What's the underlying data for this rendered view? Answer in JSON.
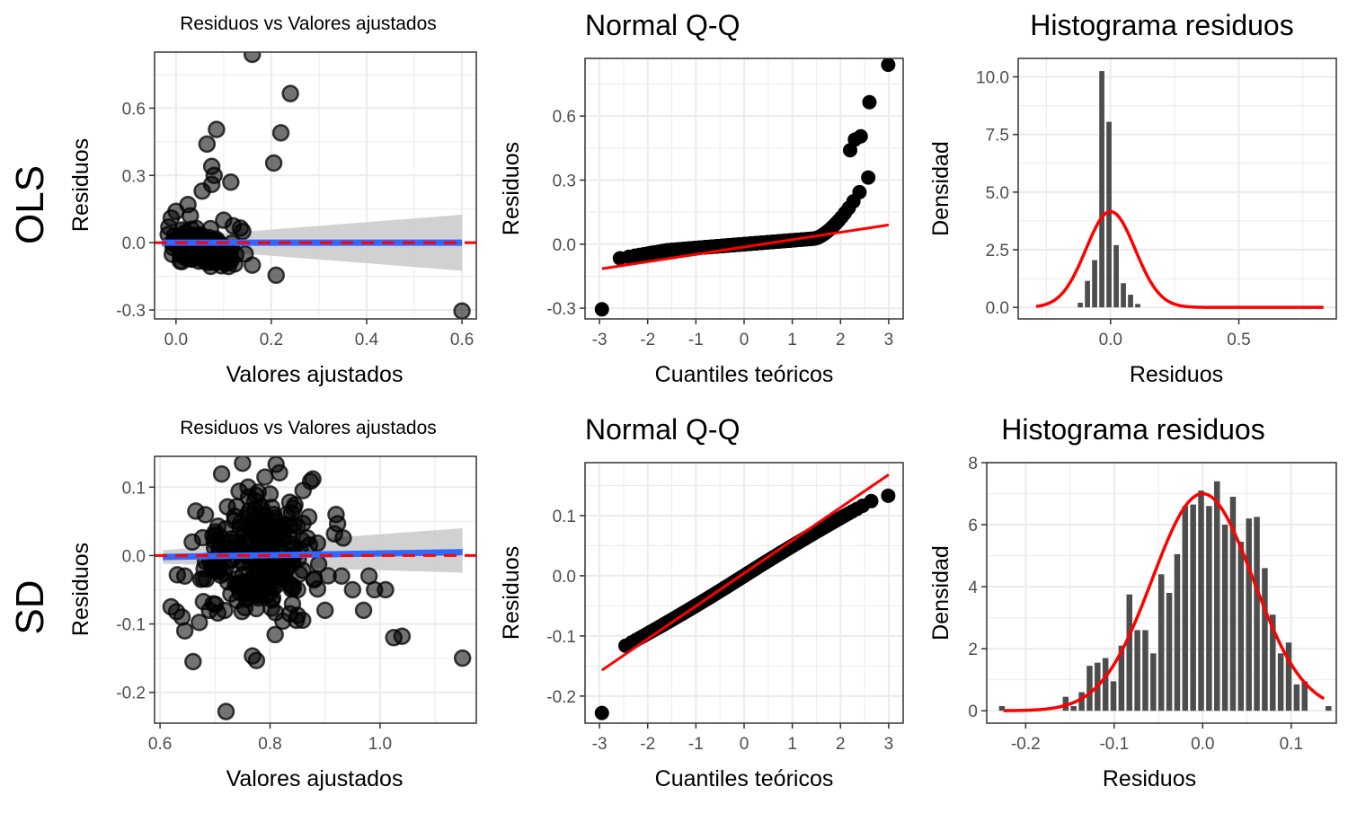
{
  "rows": [
    {
      "id": "ols",
      "label": "OLS"
    },
    {
      "id": "sd",
      "label": "SD"
    }
  ],
  "colors": {
    "points": "#000000",
    "fit_line": "#3366FF",
    "ref_line": "#FF0000",
    "band": "#cccccc",
    "bars": "#4d4d4d",
    "panel_border": "#333333",
    "grid": "#ebebeb"
  },
  "chart_data": [
    {
      "id": "ols-resid",
      "type": "scatter",
      "title": "Residuos vs Valores ajustados",
      "title_size": "small",
      "xlabel": "Valores ajustados",
      "ylabel": "Residuos",
      "xlim": [
        -0.045,
        0.63
      ],
      "ylim": [
        -0.34,
        0.85
      ],
      "xticks": [
        0.0,
        0.2,
        0.4,
        0.6
      ],
      "xtick_labels": [
        "0.0",
        "0.2",
        "0.4",
        "0.6"
      ],
      "yticks": [
        -0.3,
        0.0,
        0.3,
        0.6
      ],
      "ytick_labels": [
        "-0.3",
        "0.0",
        "0.3",
        "0.6"
      ],
      "smooth": {
        "x": [
          -0.03,
          0.6
        ],
        "y": [
          0.0,
          0.0
        ],
        "band_lo": [
          -0.02,
          -0.125
        ],
        "band_hi": [
          0.02,
          0.125
        ]
      },
      "hline": 0.0,
      "points": {
        "n_cluster": 230,
        "cluster": {
          "x_center": 0.04,
          "x_sd": 0.035,
          "y_center": 0.0,
          "y_sd": 0.035
        },
        "x": [
          0.16,
          0.24,
          0.085,
          0.22,
          0.065,
          0.205,
          0.075,
          0.08,
          0.075,
          0.115,
          0.055,
          0.025,
          0.12,
          0.135,
          0.1,
          0.14,
          0.145,
          0.115,
          0.16,
          0.21,
          0.6,
          0.0,
          -0.01,
          -0.015,
          0.03
        ],
        "y": [
          0.84,
          0.665,
          0.505,
          0.49,
          0.44,
          0.355,
          0.34,
          0.3,
          0.26,
          0.27,
          0.23,
          0.17,
          0.075,
          0.065,
          0.1,
          0.05,
          -0.05,
          -0.08,
          -0.1,
          -0.145,
          -0.305,
          0.14,
          0.11,
          0.07,
          0.12
        ]
      }
    },
    {
      "id": "ols-qq",
      "type": "scatter",
      "title": "Normal Q-Q",
      "title_size": "big",
      "xlabel": "Cuantiles teóricos",
      "ylabel": "Residuos",
      "xlim": [
        -3.3,
        3.3
      ],
      "ylim": [
        -0.35,
        0.87
      ],
      "xticks": [
        -3,
        -2,
        -1,
        0,
        1,
        2,
        3
      ],
      "xtick_labels": [
        "-3",
        "-2",
        "-1",
        "0",
        "1",
        "2",
        "3"
      ],
      "yticks": [
        -0.3,
        0.0,
        0.3,
        0.6
      ],
      "ytick_labels": [
        "-0.3",
        "0.0",
        "0.3",
        "0.6"
      ],
      "ref_line": {
        "x": [
          -2.95,
          3.0
        ],
        "y": [
          -0.115,
          0.09
        ]
      },
      "points": {
        "n_qq": 300,
        "qq_model": "ols",
        "x": [
          -2.95,
          2.99,
          2.6,
          2.42,
          2.3,
          2.2
        ],
        "y": [
          -0.305,
          0.84,
          0.665,
          0.505,
          0.49,
          0.44
        ]
      }
    },
    {
      "id": "ols-hist",
      "type": "bar",
      "title": "Histograma residuos",
      "title_size": "big",
      "xlabel": "Residuos",
      "ylabel": "Densidad",
      "xlim": [
        -0.36,
        0.88
      ],
      "ylim": [
        -0.5,
        10.8
      ],
      "xticks": [
        0.0,
        0.5
      ],
      "xtick_labels": [
        "0.0",
        "0.5"
      ],
      "yticks": [
        0.0,
        2.5,
        5.0,
        7.5,
        10.0
      ],
      "ytick_labels": [
        "0.0",
        "2.5",
        "5.0",
        "7.5",
        "10.0"
      ],
      "bin_width": 0.028,
      "bar_width": 0.02,
      "bin_centers": [
        -0.118,
        -0.09,
        -0.062,
        -0.034,
        -0.006,
        0.022,
        0.05,
        0.078,
        0.106
      ],
      "bar_values": [
        0.2,
        1.15,
        2.05,
        10.25,
        8.05,
        2.7,
        1.05,
        0.55,
        0.15
      ],
      "density_curve": {
        "mean": 0.0,
        "sd": 0.096,
        "x_from": -0.29,
        "x_to": 0.83
      }
    },
    {
      "id": "sd-resid",
      "type": "scatter",
      "title": "Residuos vs Valores ajustados",
      "title_size": "small",
      "xlabel": "Valores ajustados",
      "ylabel": "Residuos",
      "xlim": [
        0.59,
        1.175
      ],
      "ylim": [
        -0.245,
        0.145
      ],
      "xticks": [
        0.6,
        0.8,
        1.0
      ],
      "xtick_labels": [
        "0.6",
        "0.8",
        "1.0"
      ],
      "yticks": [
        -0.2,
        -0.1,
        0.0,
        0.1
      ],
      "ytick_labels": [
        "-0.2",
        "-0.1",
        "0.0",
        "0.1"
      ],
      "smooth": {
        "x": [
          0.605,
          1.15
        ],
        "y": [
          -0.002,
          0.005
        ],
        "band_lo": [
          -0.01,
          -0.03
        ],
        "band_hi": [
          0.01,
          0.035
        ]
      },
      "hline": 0.0,
      "points": {
        "n_cluster": 260,
        "cluster": {
          "x_center": 0.78,
          "x_sd": 0.055,
          "y_center": 0.0,
          "y_sd": 0.052
        },
        "x": [
          0.62,
          0.63,
          0.64,
          0.645,
          0.66,
          0.665,
          0.72,
          0.73,
          0.75,
          0.83,
          0.85,
          0.9,
          0.93,
          0.95,
          0.97,
          0.99,
          1.01,
          1.025,
          1.04,
          1.15,
          0.76,
          0.8,
          0.86,
          0.69,
          0.92,
          0.98
        ],
        "y": [
          -0.075,
          -0.082,
          -0.09,
          -0.11,
          -0.155,
          0.065,
          -0.228,
          0.02,
          0.135,
          0.06,
          -0.05,
          -0.08,
          -0.03,
          -0.05,
          -0.08,
          -0.05,
          -0.05,
          -0.12,
          -0.118,
          -0.15,
          0.1,
          0.09,
          0.095,
          -0.08,
          0.06,
          -0.03
        ]
      }
    },
    {
      "id": "sd-qq",
      "type": "scatter",
      "title": "Normal Q-Q",
      "title_size": "big",
      "xlabel": "Cuantiles teóricos",
      "ylabel": "Residuos",
      "xlim": [
        -3.3,
        3.3
      ],
      "ylim": [
        -0.245,
        0.188
      ],
      "xticks": [
        -3,
        -2,
        -1,
        0,
        1,
        2,
        3
      ],
      "xtick_labels": [
        "-3",
        "-2",
        "-1",
        "0",
        "1",
        "2",
        "3"
      ],
      "yticks": [
        -0.2,
        -0.1,
        0.0,
        0.1
      ],
      "ytick_labels": [
        "-0.2",
        "-0.1",
        "0.0",
        "0.1"
      ],
      "ref_line": {
        "x": [
          -2.95,
          3.0
        ],
        "y": [
          -0.157,
          0.168
        ]
      },
      "points": {
        "n_qq": 360,
        "qq_model": "sd",
        "x": [
          -2.95,
          2.99
        ],
        "y": [
          -0.228,
          0.133
        ]
      }
    },
    {
      "id": "sd-hist",
      "type": "bar",
      "title": "Histograma residuos",
      "title_size": "big",
      "xlabel": "Residuos",
      "ylabel": "Densidad",
      "xlim": [
        -0.244,
        0.151
      ],
      "ylim": [
        -0.4,
        8.0
      ],
      "xticks": [
        -0.2,
        -0.1,
        0.0,
        0.1
      ],
      "xtick_labels": [
        "-0.2",
        "-0.1",
        "0.0",
        "0.1"
      ],
      "yticks": [
        0,
        2,
        4,
        6,
        8
      ],
      "ytick_labels": [
        "0",
        "2",
        "4",
        "6",
        "8"
      ],
      "bin_width": 0.009,
      "bar_width": 0.0066,
      "bin_centers": [
        -0.2268,
        -0.2178,
        -0.2088,
        -0.1998,
        -0.1908,
        -0.1818,
        -0.1728,
        -0.1638,
        -0.1548,
        -0.1458,
        -0.1368,
        -0.1278,
        -0.1188,
        -0.1098,
        -0.1008,
        -0.0918,
        -0.0828,
        -0.0738,
        -0.0648,
        -0.0558,
        -0.0468,
        -0.0378,
        -0.0288,
        -0.0198,
        -0.0108,
        -0.0018,
        0.0072,
        0.0162,
        0.0252,
        0.0342,
        0.0432,
        0.0522,
        0.0612,
        0.0702,
        0.0792,
        0.0882,
        0.0972,
        0.1062,
        0.1152,
        0.1242,
        0.1332,
        0.1422
      ],
      "bar_values": [
        0.15,
        0,
        0,
        0,
        0,
        0,
        0,
        0,
        0.45,
        0.15,
        0.6,
        1.45,
        1.55,
        1.7,
        0.95,
        2.1,
        3.75,
        2.6,
        2.6,
        1.85,
        4.4,
        3.8,
        5.05,
        6.6,
        6.65,
        7.1,
        6.6,
        7.4,
        6.0,
        6.9,
        5.45,
        6.2,
        6.25,
        4.6,
        3.1,
        1.85,
        2.2,
        0.85,
        0.95,
        0,
        0,
        0.15
      ],
      "density_curve": {
        "mean": 0.0,
        "sd": 0.057,
        "x_from": -0.225,
        "x_to": 0.137
      }
    }
  ]
}
